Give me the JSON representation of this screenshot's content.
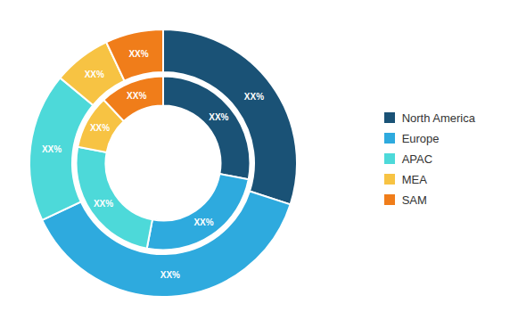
{
  "chart_data": {
    "type": "pie",
    "categories": [
      "North America",
      "Europe",
      "APAC",
      "MEA",
      "SAM"
    ],
    "colors": [
      "#1a5276",
      "#2eaade",
      "#4dd9d9",
      "#f7c343",
      "#f07d1a"
    ],
    "series": [
      {
        "values": [
          30,
          38,
          18,
          7,
          7
        ],
        "value_labels": [
          "XX%",
          "XX%",
          "XX%",
          "XX%",
          "XX%"
        ]
      },
      {
        "values": [
          28,
          25,
          25,
          10,
          12
        ],
        "value_labels": [
          "XX%",
          "XX%",
          "XX%",
          "XX%",
          "XX%"
        ]
      }
    ],
    "legend": "right",
    "data_labels": true
  }
}
